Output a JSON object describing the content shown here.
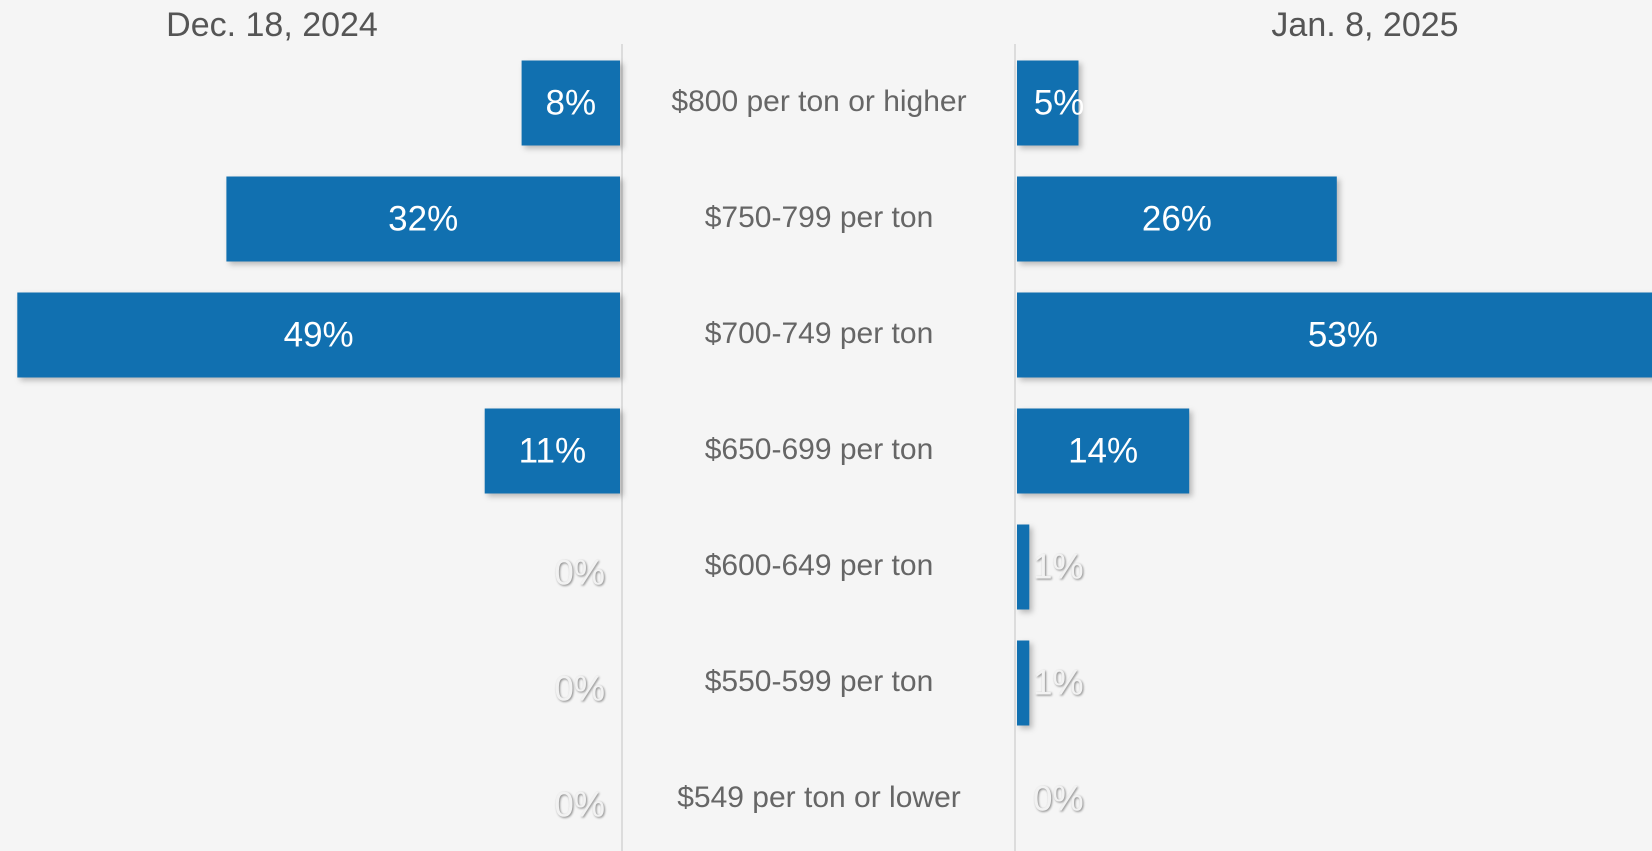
{
  "chart_data": {
    "type": "butterfly-bar",
    "categories": [
      "$800 per ton or higher",
      "$750-799 per ton",
      "$700-749 per ton",
      "$650-699 per ton",
      "$600-649 per ton",
      "$550-599 per ton",
      "$549 per ton or lower"
    ],
    "series": [
      {
        "name": "Dec. 18, 2024",
        "color": "#1170b0",
        "values": [
          8,
          32,
          49,
          11,
          0,
          0,
          0
        ],
        "value_labels": [
          "8%",
          "32%",
          "49%",
          "11%",
          "0%",
          "0%",
          "0%"
        ]
      },
      {
        "name": "Jan. 8, 2025",
        "color": "#1170b0",
        "values": [
          5,
          26,
          53,
          14,
          1,
          1,
          0
        ],
        "value_labels": [
          "5%",
          "26%",
          "53%",
          "14%",
          "1%",
          "1%",
          "0%"
        ]
      }
    ]
  }
}
